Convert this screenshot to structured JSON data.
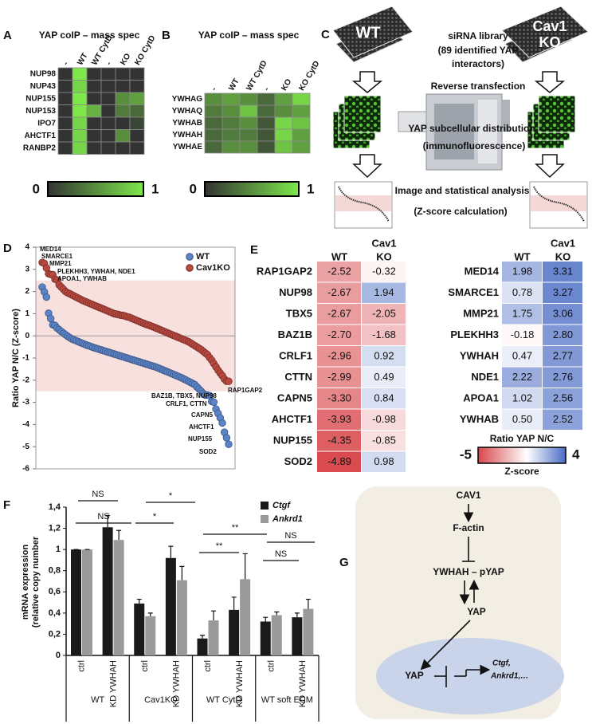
{
  "chart_data": [
    {
      "type": "heatmap",
      "label": "A",
      "title": "YAP coIP – mass spec",
      "columns": [
        "-",
        "WT",
        "WT CytD",
        "-",
        "KO",
        "KO CytD"
      ],
      "rows": [
        "NUP98",
        "NUP43",
        "NUP155",
        "NUP153",
        "IPO7",
        "AHCTF1",
        "RANBP2"
      ],
      "values": [
        [
          0,
          1,
          0,
          0,
          0,
          0
        ],
        [
          0,
          0.9,
          0,
          0,
          0,
          0
        ],
        [
          0,
          1,
          0,
          0,
          0.5,
          0.6
        ],
        [
          0,
          1,
          0.7,
          0,
          0.4,
          0.3
        ],
        [
          0,
          0.9,
          0,
          0,
          0,
          0.1
        ],
        [
          0,
          0.9,
          0,
          0,
          0.5,
          0
        ],
        [
          0,
          0.9,
          0,
          0,
          0,
          0
        ]
      ],
      "zlim": [
        0,
        1
      ],
      "zticks": [
        0,
        1
      ],
      "colormap": [
        "#333333",
        "#7ee84a"
      ]
    },
    {
      "type": "heatmap",
      "label": "B",
      "title": "YAP coIP – mass spec",
      "columns": [
        "-",
        "WT",
        "WT CytD",
        "-",
        "KO",
        "KO CytD"
      ],
      "rows": [
        "YWHAG",
        "YWHAQ",
        "YWHAB",
        "YWHAH",
        "YWHAE"
      ],
      "values": [
        [
          0.5,
          0.6,
          0.5,
          0.3,
          0.6,
          0.9
        ],
        [
          0.4,
          0.5,
          0.8,
          0.3,
          0.5,
          0.6
        ],
        [
          0.3,
          0.4,
          0.5,
          0.2,
          0.9,
          0.8
        ],
        [
          0.3,
          0.4,
          0.4,
          0.2,
          0.9,
          0.6
        ],
        [
          0.3,
          0.5,
          0.5,
          0.2,
          0.8,
          0.6
        ]
      ],
      "zlim": [
        0,
        1
      ],
      "zticks": [
        0,
        1
      ],
      "colormap": [
        "#333333",
        "#7ee84a"
      ]
    },
    {
      "type": "scatter",
      "label": "D",
      "ylabel": "Ratio YAP N/C (Z-score)",
      "ylim": [
        -6,
        4
      ],
      "yticks": [
        4,
        3,
        2,
        1,
        0,
        -1,
        -2,
        -3,
        -4,
        -5,
        -6
      ],
      "band": [
        -2.5,
        2.5
      ],
      "band_color": "#f7e0de",
      "legend": "upper right",
      "series": [
        {
          "name": "WT",
          "color": "#5b84c8",
          "values": [
            2.2,
            1.98,
            1.75,
            1.02,
            0.78,
            0.5,
            0.47,
            0.35,
            0.28,
            0.2,
            0.12,
            0.05,
            -0.02,
            -0.08,
            -0.14,
            -0.18,
            -0.22,
            -0.26,
            -0.3,
            -0.34,
            -0.38,
            -0.42,
            -0.45,
            -0.48,
            -0.52,
            -0.55,
            -0.58,
            -0.61,
            -0.64,
            -0.67,
            -0.7,
            -0.73,
            -0.76,
            -0.79,
            -0.82,
            -0.85,
            -0.88,
            -0.91,
            -0.94,
            -0.97,
            -1,
            -1.03,
            -1.06,
            -1.09,
            -1.12,
            -1.15,
            -1.18,
            -1.21,
            -1.24,
            -1.27,
            -1.3,
            -1.33,
            -1.36,
            -1.39,
            -1.42,
            -1.46,
            -1.5,
            -1.54,
            -1.58,
            -1.62,
            -1.66,
            -1.7,
            -1.74,
            -1.78,
            -1.82,
            -1.86,
            -1.9,
            -1.95,
            -2,
            -2.05,
            -2.1,
            -2.15,
            -2.2,
            -2.3,
            -2.4,
            -2.5,
            -2.6,
            -2.67,
            -2.67,
            -2.7,
            -2.96,
            -2.99,
            -3.3,
            -3.5,
            -3.7,
            -3.93,
            -4.35,
            -4.6,
            -4.89
          ]
        },
        {
          "name": "Cav1KO",
          "color": "#b9483f",
          "values": [
            3.31,
            3.27,
            3.06,
            2.8,
            2.77,
            2.76,
            2.56,
            2.52,
            2.3,
            2.2,
            2.1,
            2,
            1.94,
            1.9,
            1.85,
            1.8,
            1.75,
            1.7,
            1.65,
            1.6,
            1.56,
            1.52,
            1.48,
            1.44,
            1.4,
            1.36,
            1.32,
            1.28,
            1.24,
            1.2,
            1.16,
            1.12,
            1.08,
            1.04,
            1,
            0.98,
            0.96,
            0.93,
            0.92,
            0.9,
            0.86,
            0.84,
            0.8,
            0.76,
            0.72,
            0.68,
            0.64,
            0.6,
            0.56,
            0.52,
            0.49,
            0.46,
            0.42,
            0.38,
            0.34,
            0.3,
            0.26,
            0.22,
            0.18,
            0.14,
            0.1,
            0.06,
            0.02,
            -0.02,
            -0.06,
            -0.1,
            -0.14,
            -0.18,
            -0.22,
            -0.26,
            -0.32,
            -0.38,
            -0.44,
            -0.5,
            -0.56,
            -0.62,
            -0.7,
            -0.78,
            -0.85,
            -0.98,
            -1.1,
            -1.25,
            -1.4,
            -1.55,
            -1.68,
            -1.8,
            -1.95,
            -2.05,
            -2.05
          ]
        }
      ],
      "annotations": [
        "MED14",
        "SMARCE1",
        "MMP21",
        "PLEKHH3, YWHAH, NDE1",
        "APOA1, YWHAB",
        "RAP1GAP2",
        "BAZ1B, TBX5, NUP98",
        "CRLF1, CTTN",
        "CAPN5",
        "AHCTF1",
        "NUP155",
        "SOD2"
      ]
    },
    {
      "type": "table_heatmap",
      "label": "E",
      "zlim": [
        -5,
        4
      ],
      "zticks": [
        -5,
        4
      ],
      "colormap": [
        "#d8474b",
        "#ffffff",
        "#4a6cc4"
      ],
      "colorbar_title": "Ratio YAP N/C",
      "colorbar_label": "Z-score",
      "tables": [
        {
          "columns": [
            [
              "WT"
            ],
            [
              "Cav1",
              "KO"
            ]
          ],
          "rows": [
            "RAP1GAP2",
            "NUP98",
            "TBX5",
            "BAZ1B",
            "CRLF1",
            "CTTN",
            "CAPN5",
            "AHCTF1",
            "NUP155",
            "SOD2"
          ],
          "values": [
            [
              -2.52,
              -0.32
            ],
            [
              -2.67,
              1.94
            ],
            [
              -2.67,
              -2.05
            ],
            [
              -2.7,
              -1.68
            ],
            [
              -2.96,
              0.92
            ],
            [
              -2.99,
              0.49
            ],
            [
              -3.3,
              0.84
            ],
            [
              -3.93,
              -0.98
            ],
            [
              -4.35,
              -0.85
            ],
            [
              -4.89,
              0.98
            ]
          ],
          "value_labels": [
            [
              "-2.52",
              "-0.32"
            ],
            [
              "-2.67",
              "1.94"
            ],
            [
              "-2.67",
              "-2.05"
            ],
            [
              "-2.70",
              "-1.68"
            ],
            [
              "-2.96",
              "0.92"
            ],
            [
              "-2.99",
              "0.49"
            ],
            [
              "-3.30",
              "0.84"
            ],
            [
              "-3.93",
              "-0.98"
            ],
            [
              "-4.35",
              "-0.85"
            ],
            [
              "-4.89",
              "0.98"
            ]
          ]
        },
        {
          "columns": [
            [
              "WT"
            ],
            [
              "Cav1",
              "KO"
            ]
          ],
          "rows": [
            "MED14",
            "SMARCE1",
            "MMP21",
            "PLEKHH3",
            "YWHAH",
            "NDE1",
            "APOA1",
            "YWHAB"
          ],
          "values": [
            [
              1.98,
              3.31
            ],
            [
              0.78,
              3.27
            ],
            [
              1.75,
              3.06
            ],
            [
              -0.18,
              2.8
            ],
            [
              0.47,
              2.77
            ],
            [
              2.22,
              2.76
            ],
            [
              1.02,
              2.56
            ],
            [
              0.5,
              2.52
            ]
          ],
          "value_labels": [
            [
              "1.98",
              "3.31"
            ],
            [
              "0.78",
              "3.27"
            ],
            [
              "1.75",
              "3.06"
            ],
            [
              "-0.18",
              "2.80"
            ],
            [
              "0.47",
              "2.77"
            ],
            [
              "2.22",
              "2.76"
            ],
            [
              "1.02",
              "2.56"
            ],
            [
              "0.50",
              "2.52"
            ]
          ]
        }
      ]
    },
    {
      "type": "grouped_bar",
      "label": "F",
      "ylabel": [
        "mRNA expression",
        "(relative copy number"
      ],
      "ylim": [
        0,
        1.4
      ],
      "yticks": [
        0,
        {
          "value": 0.2,
          "label": "0,2"
        },
        {
          "value": 0.4,
          "label": "0,4"
        },
        {
          "value": 0.6,
          "label": "0,6"
        },
        {
          "value": 0.8,
          "label": "0,8"
        },
        1,
        {
          "value": 1.2,
          "label": "1,2"
        },
        {
          "value": 1.4,
          "label": "1,4"
        }
      ],
      "categories": [
        "ctrl",
        "KD YWHAH",
        "ctrl",
        "KD YWHAH",
        "ctrl",
        "KD YWHAH",
        "ctrl",
        "KD YWHAH"
      ],
      "groups": [
        "WT",
        "Cav1KO",
        "WT CytD",
        "WT soft ECM"
      ],
      "legend": "upper right",
      "series": [
        {
          "name": "Ctgf",
          "color": "#1a1a1a",
          "values": [
            1,
            1.21,
            0.49,
            0.92,
            0.16,
            0.43,
            0.32,
            0.36
          ],
          "errors": [
            0,
            0.11,
            0.04,
            0.11,
            0.03,
            0.12,
            0.04,
            0.04
          ]
        },
        {
          "name": "Ankrd1",
          "color": "#9a9a9a",
          "values": [
            1,
            1.09,
            0.37,
            0.71,
            0.33,
            0.72,
            0.38,
            0.44
          ],
          "errors": [
            0,
            0.09,
            0.03,
            0.13,
            0.09,
            0.24,
            0.03,
            0.09
          ]
        }
      ],
      "significance": [
        "NS",
        "NS",
        "*",
        "*",
        "**",
        "**",
        "NS",
        "NS"
      ]
    }
  ],
  "diagram_c": {
    "label": "C",
    "left_plate": "WT",
    "right_plate": [
      "Cav1",
      "KO"
    ],
    "steps": [
      "siRNA library",
      "(89 identified YAP",
      "interactors)",
      "Reverse transfection",
      "YAP subcellular distribution",
      "(immunofluorescence)",
      "Image and statistical analysis",
      "(Z-score calculation)"
    ]
  },
  "diagram_g": {
    "label": "G",
    "nodes": [
      "CAV1",
      "F-actin",
      "YWHAH – pYAP",
      "YAP",
      "YAP"
    ],
    "targets": [
      "Ctgf,",
      "Ankrd1,…"
    ]
  }
}
